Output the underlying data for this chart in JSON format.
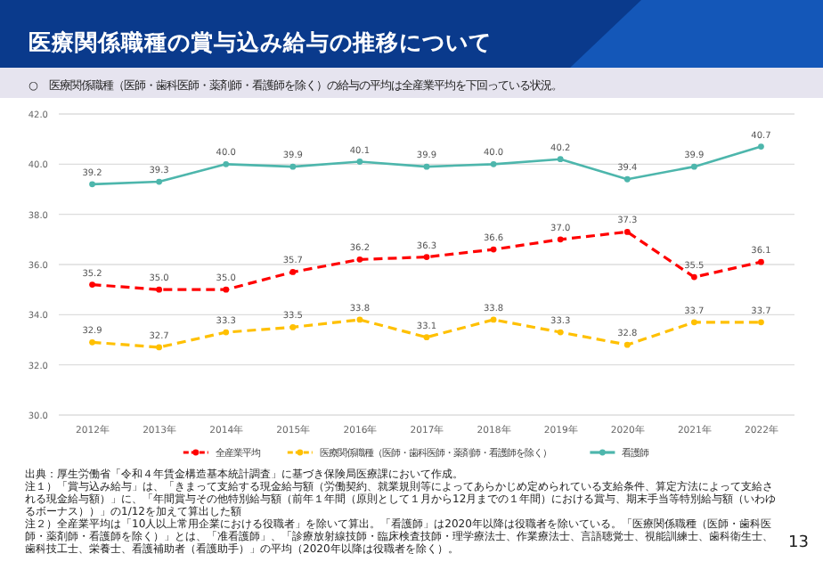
{
  "chart_data": {
    "type": "line",
    "title": "医療関係職種の賞与込み給与の推移について",
    "subtitle": "○　医療関係職種（医師・歯科医師・薬剤師・看護師を除く）の給与の平均は全産業平均を下回っている状況。",
    "categories": [
      "2012年",
      "2013年",
      "2014年",
      "2015年",
      "2016年",
      "2017年",
      "2018年",
      "2019年",
      "2020年",
      "2021年",
      "2022年"
    ],
    "series": [
      {
        "name": "全産業平均",
        "color": "#ff0000",
        "line_style": "dashed",
        "values": [
          35.2,
          35.0,
          35.0,
          35.7,
          36.2,
          36.3,
          36.6,
          37.0,
          37.3,
          35.5,
          36.1
        ],
        "value_labels": [
          "35.2",
          "35.0",
          "35.0",
          "35.7",
          "36.2",
          "36.3",
          "36.6",
          "37.0",
          "37.3",
          "35.5",
          "36.1"
        ]
      },
      {
        "name": "医療関係職種（医師・歯科医師・薬剤師・看護師を除く）",
        "color": "#ffc000",
        "line_style": "dashed",
        "values": [
          32.9,
          32.7,
          33.3,
          33.5,
          33.8,
          33.1,
          33.8,
          33.3,
          32.8,
          33.7,
          33.7
        ],
        "value_labels": [
          "32.9",
          "32.7",
          "33.3",
          "33.5",
          "33.8",
          "33.1",
          "33.8",
          "33.3",
          "32.8",
          "33.7",
          "33.7"
        ]
      },
      {
        "name": "看護師",
        "color": "#4db6ac",
        "line_style": "solid",
        "values": [
          39.2,
          39.3,
          40.0,
          39.9,
          40.1,
          39.9,
          40.0,
          40.2,
          39.4,
          39.9,
          40.7
        ],
        "value_labels": [
          "39.2",
          "39.3",
          "40.0",
          "39.9",
          "40.1",
          "39.9",
          "40.0",
          "40.2",
          "39.4",
          "39.9",
          "40.7"
        ]
      }
    ],
    "ylim": [
      30,
      42
    ],
    "yticks": [
      {
        "value": 30,
        "label": "30.0"
      },
      {
        "value": 32,
        "label": "32.0"
      },
      {
        "value": 34,
        "label": "34.0"
      },
      {
        "value": 36,
        "label": "36.0"
      },
      {
        "value": 38,
        "label": "38.0"
      },
      {
        "value": 40,
        "label": "40.0"
      },
      {
        "value": 42,
        "label": "42.0"
      }
    ],
    "grid": "y",
    "legend": "bottom",
    "marker": "circle",
    "annotations": [
      "出典：厚生労働省「令和４年賃金構造基本統計調査」に基づき保険局医療課において作成。",
      "注１）「賞与込み給与」は、「きまって支給する現金給与額（労働契約、就業規則等によってあらかじめ定められている支給条件、算定方法によって支給される現金給与額）」に、「年間賞与その他特別給与額（前年１年間（原則として１月から12月までの１年間）における賞与、期末手当等特別給与額（いわゆるボーナス））」の1/12を加えて算出した額",
      "注２）全産業平均は「10人以上常用企業における役職者」を除いて算出。「看護師」は2020年以降は役職者を除いている。「医療関係職種（医師・歯科医師・薬剤師・看護師を除く）」とは、「准看護師」、「診療放射線技師・臨床検査技師・理学療法士、作業療法士、言語聴覚士、視能訓練士、歯科衛生士、歯科技工士、栄養士、看護補助者（看護助手）」の平均（2020年以降は役職者を除く）。",
      "13"
    ]
  }
}
